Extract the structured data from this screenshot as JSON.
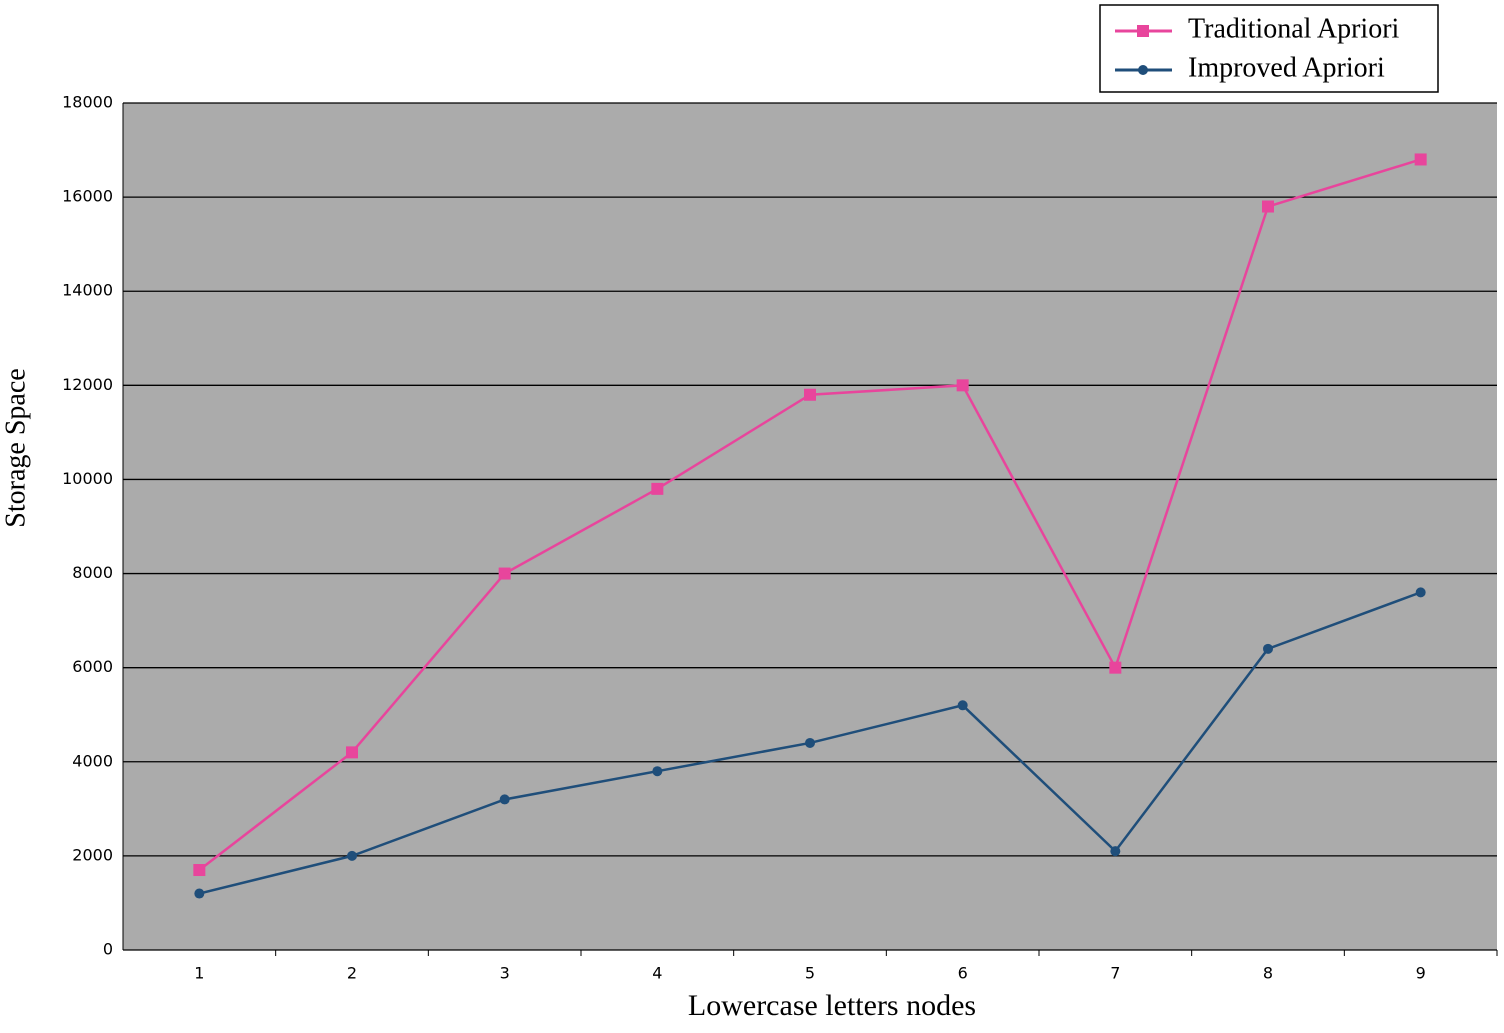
{
  "chart_data": {
    "type": "line",
    "x_label": "Lowercase letters nodes",
    "y_label": "Storage Space",
    "categories": [
      1,
      2,
      3,
      4,
      5,
      6,
      7,
      8,
      9
    ],
    "series": [
      {
        "name": "Traditional Apriori",
        "color": "#e8459c",
        "marker": "square",
        "values": [
          1700,
          4200,
          8000,
          9800,
          11800,
          12000,
          6000,
          15800,
          16800
        ]
      },
      {
        "name": "Improved Apriori",
        "color": "#1f4e7a",
        "marker": "circle",
        "values": [
          1200,
          2000,
          3200,
          3800,
          4400,
          5200,
          2100,
          6400,
          7600
        ]
      }
    ],
    "ylim": [
      0,
      18000
    ],
    "yticks": [
      0,
      2000,
      4000,
      6000,
      8000,
      10000,
      12000,
      14000,
      16000,
      18000
    ],
    "grid": true,
    "legend": "top-right"
  }
}
